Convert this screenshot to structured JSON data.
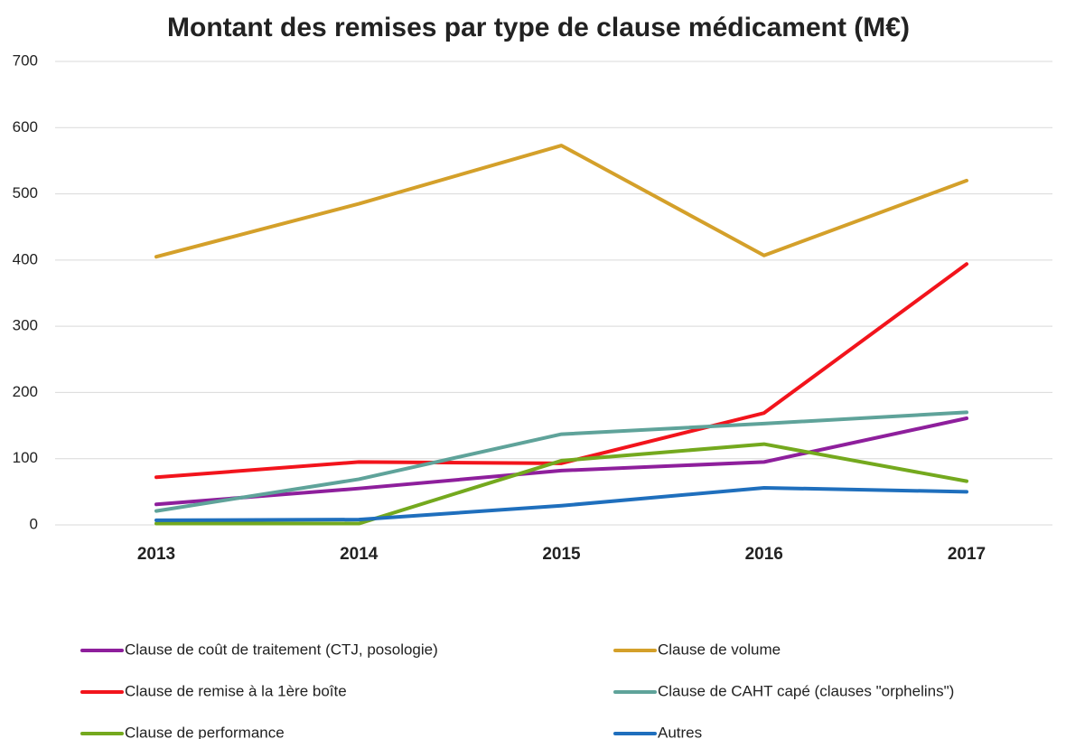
{
  "chart_data": {
    "type": "line",
    "title": "Montant des remises par type de clause médicament (M€)",
    "categories": [
      "2013",
      "2014",
      "2015",
      "2016",
      "2017"
    ],
    "series": [
      {
        "name": "Clause de coût de traitement (CTJ, posologie)",
        "color": "#8e1f9c",
        "values": [
          31,
          55,
          82,
          95,
          161
        ]
      },
      {
        "name": "Clause de volume",
        "color": "#d4a02a",
        "values": [
          405,
          485,
          573,
          407,
          520
        ]
      },
      {
        "name": "Clause de remise à la 1ère boîte",
        "color": "#f2141c",
        "values": [
          72,
          95,
          93,
          169,
          394
        ]
      },
      {
        "name": "Clause de CAHT capé (clauses \"orphelins\")",
        "color": "#5fa39a",
        "values": [
          21,
          69,
          137,
          153,
          170
        ]
      },
      {
        "name": "Clause de performance",
        "color": "#74a91e",
        "values": [
          2,
          2,
          97,
          122,
          66
        ]
      },
      {
        "name": "Autres",
        "color": "#1f6fbd",
        "values": [
          7,
          8,
          29,
          56,
          50
        ]
      }
    ],
    "ylim": [
      0,
      700
    ],
    "yticks": [
      0,
      100,
      200,
      300,
      400,
      500,
      600,
      700
    ],
    "grid": true
  }
}
